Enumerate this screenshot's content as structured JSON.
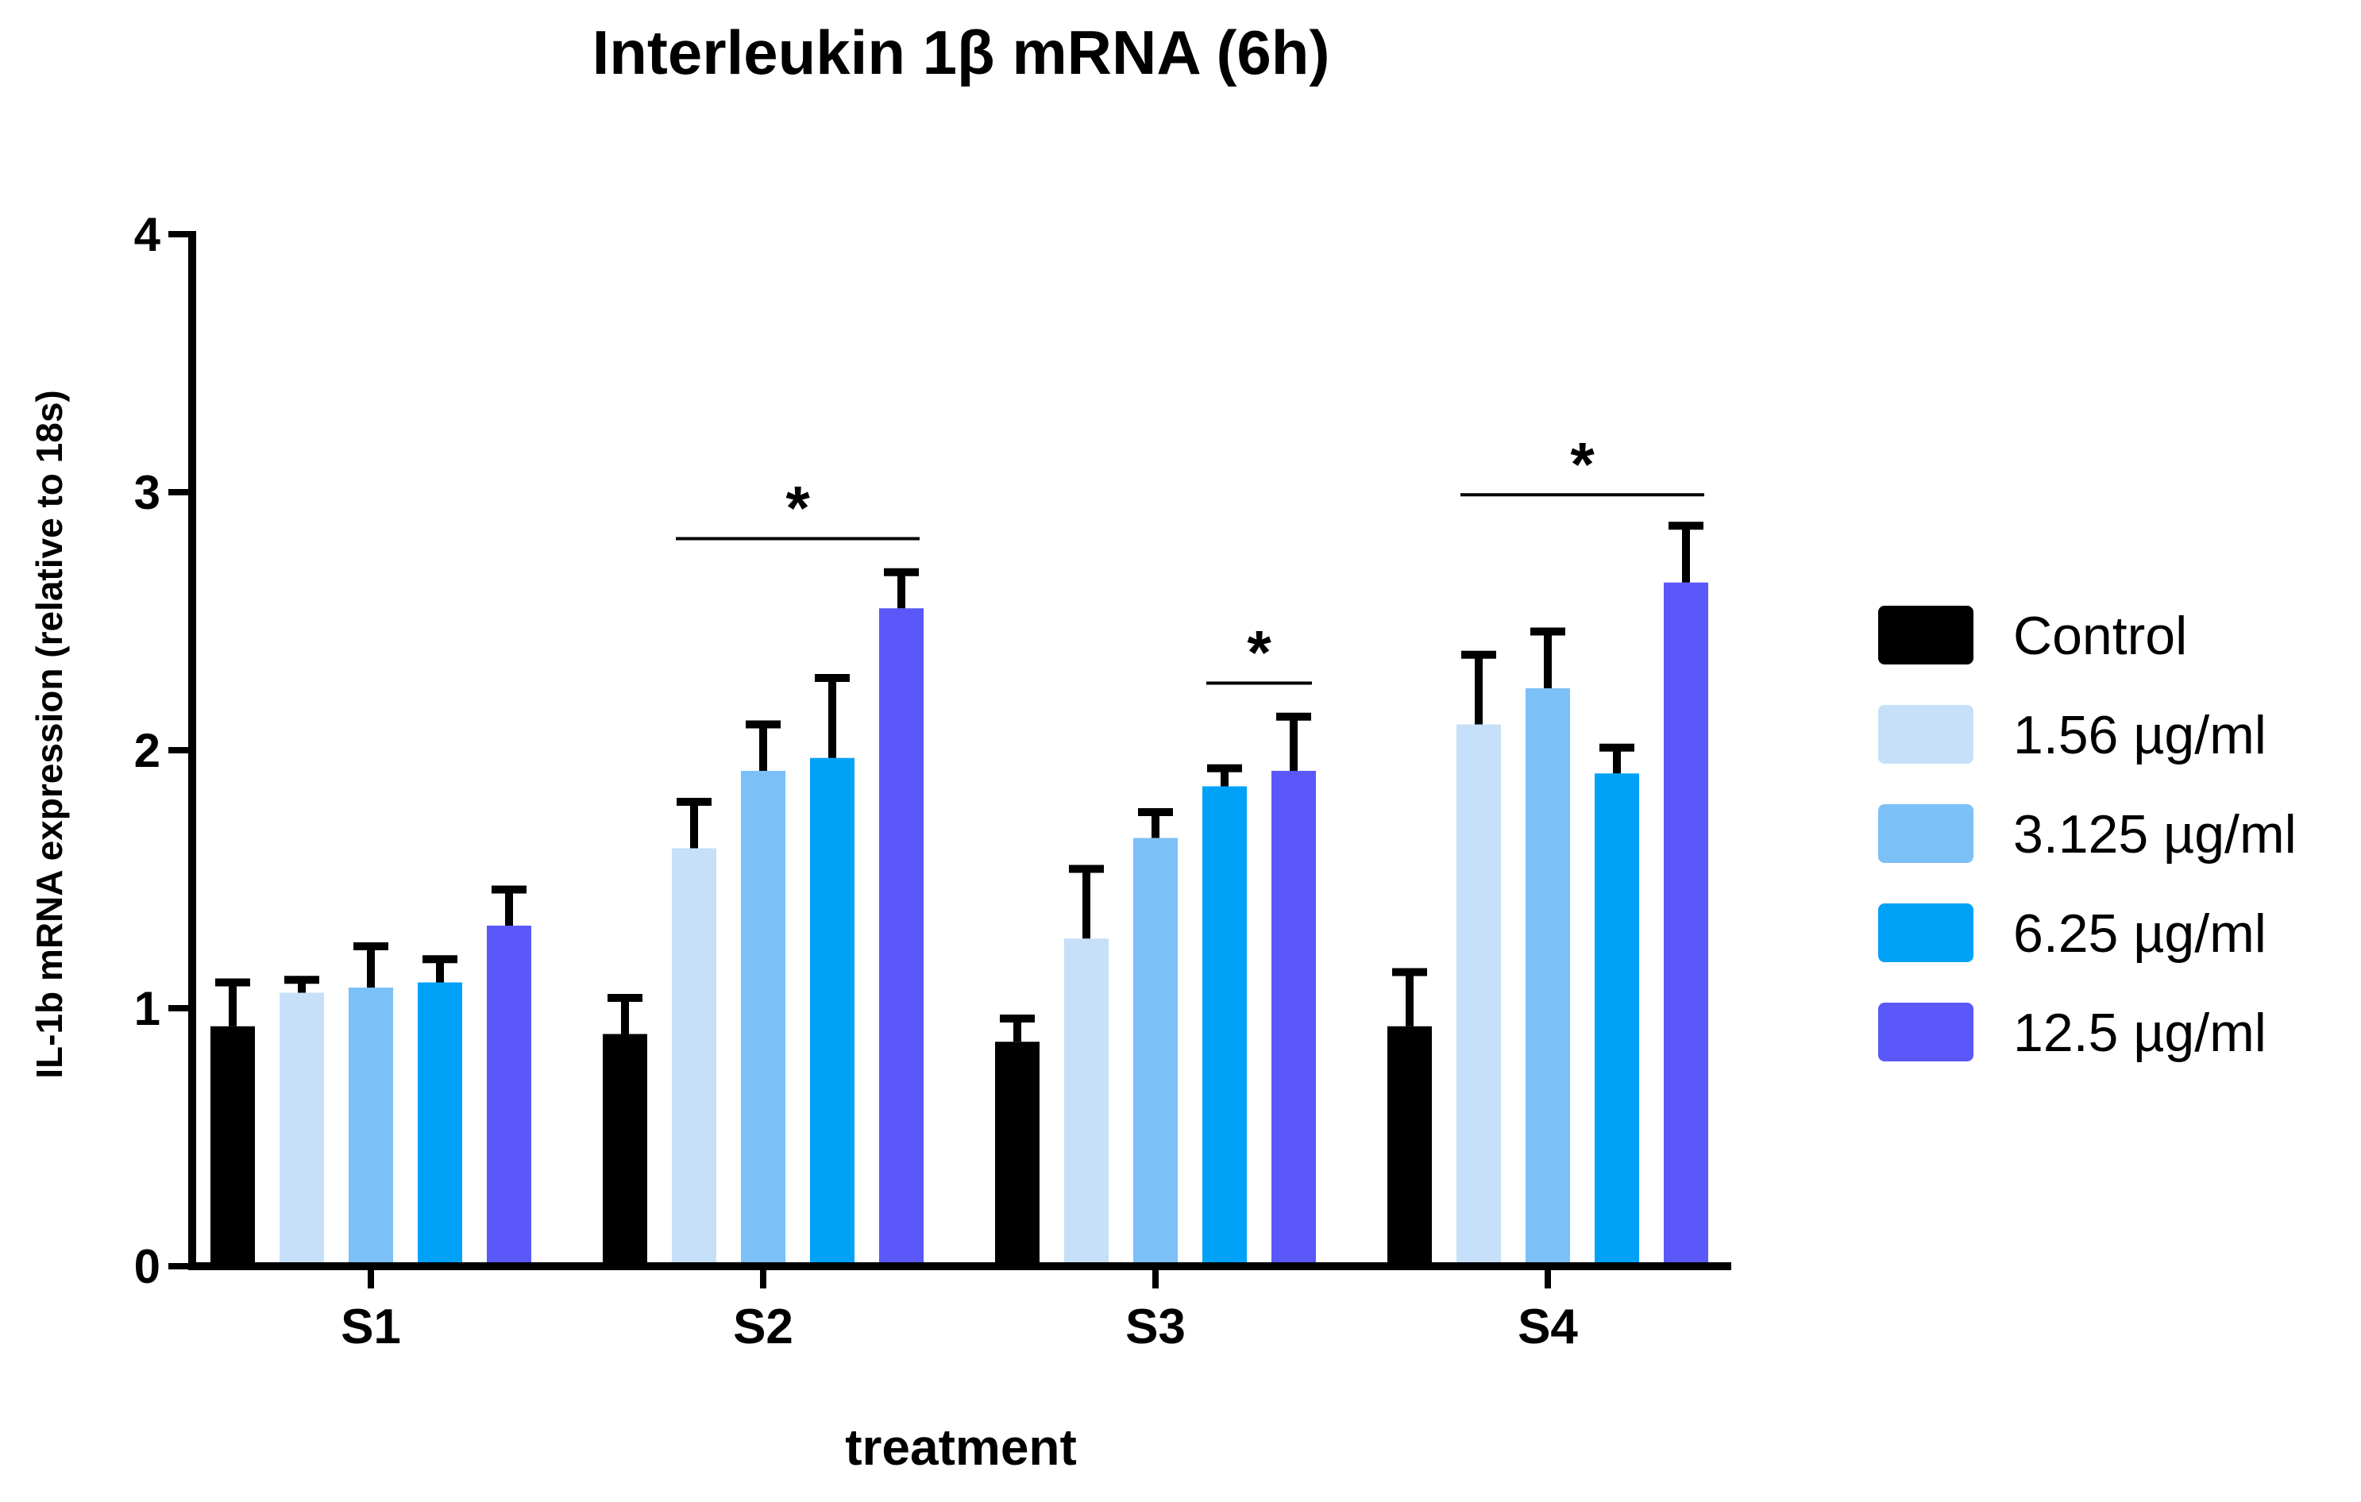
{
  "chart_data": {
    "type": "bar",
    "title": "Interleukin 1β mRNA (6h)",
    "xlabel": "treatment",
    "ylabel": "IL-1b mRNA expression (relative to 18s)",
    "ylim": [
      0,
      4
    ],
    "yticks": [
      "0",
      "1",
      "2",
      "3",
      "4"
    ],
    "categories": [
      "S1",
      "S2",
      "S3",
      "S4"
    ],
    "legend_position": "right",
    "significance_marker": "*",
    "series": [
      {
        "name": "Control",
        "color": "#000000",
        "values": [
          0.93,
          0.9,
          0.87,
          0.93
        ],
        "errors": [
          0.17,
          0.14,
          0.09,
          0.21
        ]
      },
      {
        "name": "1.56 µg/ml",
        "color": "#c5e0f8",
        "values": [
          1.06,
          1.62,
          1.27,
          2.1
        ],
        "errors": [
          0.05,
          0.18,
          0.27,
          0.27
        ]
      },
      {
        "name": "3.125 µg/ml",
        "color": "#7cc0f8",
        "values": [
          1.08,
          1.92,
          1.66,
          2.24
        ],
        "errors": [
          0.16,
          0.18,
          0.1,
          0.22
        ]
      },
      {
        "name": "6.25 µg/ml",
        "color": "#00a2f8",
        "values": [
          1.1,
          1.97,
          1.86,
          1.91
        ],
        "errors": [
          0.09,
          0.31,
          0.07,
          0.1
        ]
      },
      {
        "name": "12.5 µg/ml",
        "color": "#5a58f8",
        "values": [
          1.32,
          2.55,
          1.92,
          2.65
        ],
        "errors": [
          0.14,
          0.14,
          0.21,
          0.22
        ]
      }
    ],
    "significance": [
      {
        "category": "S2",
        "from_series": 1,
        "to_series": 4,
        "level": 2.82,
        "label": "*"
      },
      {
        "category": "S3",
        "from_series": 3,
        "to_series": 4,
        "level": 2.26,
        "label": "*"
      },
      {
        "category": "S4",
        "from_series": 1,
        "to_series": 4,
        "level": 2.99,
        "label": "*"
      }
    ]
  }
}
